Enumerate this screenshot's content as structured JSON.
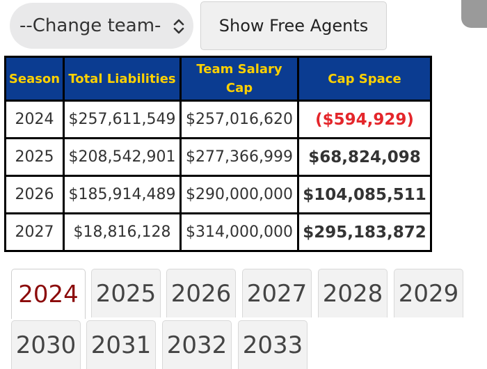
{
  "team_select": {
    "label": "--Change team-"
  },
  "free_agents_button": {
    "label": "Show Free Agents"
  },
  "table": {
    "headers": {
      "season": "Season",
      "total_liabilities": "Total Liabilities",
      "team_salary_cap_line1": "Team Salary",
      "team_salary_cap_line2": "Cap",
      "cap_space": "Cap Space"
    },
    "rows": [
      {
        "season": "2024",
        "total_liabilities": "$257,611,549",
        "team_salary_cap": "$257,016,620",
        "cap_space": "($594,929)"
      },
      {
        "season": "2025",
        "total_liabilities": "$208,542,901",
        "team_salary_cap": "$277,366,999",
        "cap_space": "$68,824,098"
      },
      {
        "season": "2026",
        "total_liabilities": "$185,914,489",
        "team_salary_cap": "$290,000,000",
        "cap_space": "$104,085,511"
      },
      {
        "season": "2027",
        "total_liabilities": "$18,816,128",
        "team_salary_cap": "$314,000,000",
        "cap_space": "$295,183,872"
      }
    ]
  },
  "year_tabs": [
    "2024",
    "2025",
    "2026",
    "2027",
    "2028",
    "2029",
    "2030",
    "2031",
    "2032",
    "2033"
  ],
  "active_year_tab": "2024",
  "colors": {
    "header_bg": "#0b3c91",
    "header_text": "#ffd100",
    "negative_cap_space": "#e4262b",
    "active_tab_text": "#8b0a0a"
  }
}
